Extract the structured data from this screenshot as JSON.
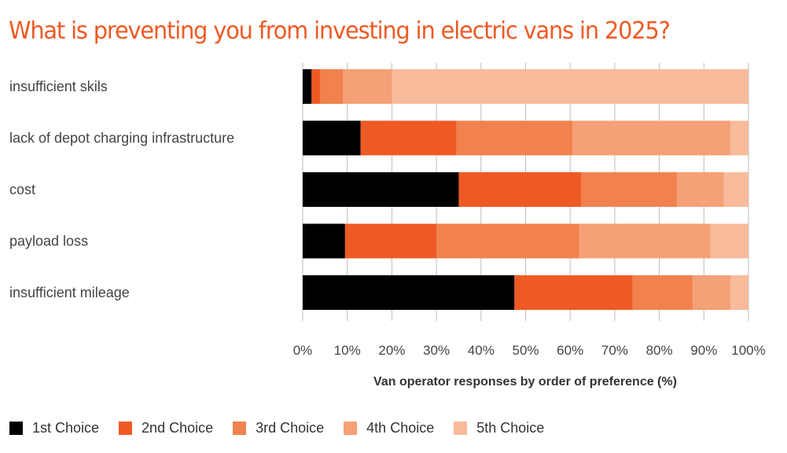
{
  "title": "What is preventing you from investing in electric vans in 2025?",
  "chart_data": {
    "type": "bar",
    "orientation": "horizontal",
    "stacked": true,
    "title": "What is preventing you from investing in electric vans in 2025?",
    "xlabel": "Van operator responses by order of preference (%)",
    "ylabel": "",
    "xlim": [
      0,
      100
    ],
    "x_ticks": [
      "0%",
      "10%",
      "20%",
      "30%",
      "40%",
      "50%",
      "60%",
      "70%",
      "80%",
      "90%",
      "100%"
    ],
    "grid": true,
    "legend_position": "bottom",
    "categories": [
      "insufficient skils",
      "lack of depot charging infrastructure",
      "cost",
      "payload loss",
      "insufficient mileage"
    ],
    "series": [
      {
        "name": "1st Choice",
        "color": "#000000",
        "values": [
          2,
          13,
          35,
          9.5,
          47.5
        ]
      },
      {
        "name": "2nd Choice",
        "color": "#ee5a24",
        "values": [
          2,
          21.5,
          27.5,
          20.5,
          26.5
        ]
      },
      {
        "name": "3rd Choice",
        "color": "#f1824e",
        "values": [
          5,
          26,
          21.5,
          32,
          13.5
        ]
      },
      {
        "name": "4th Choice",
        "color": "#f5a076",
        "values": [
          11,
          35.5,
          10.5,
          29.5,
          8.5
        ]
      },
      {
        "name": "5th Choice",
        "color": "#f8bb9c",
        "values": [
          80,
          4,
          5.5,
          8.5,
          4
        ]
      }
    ]
  }
}
